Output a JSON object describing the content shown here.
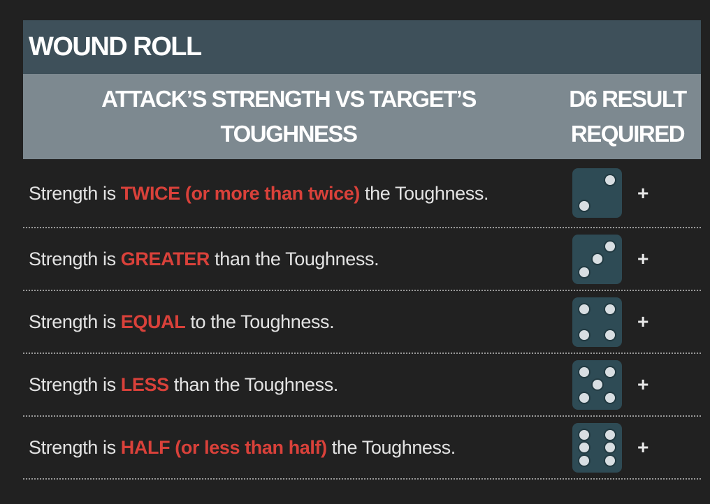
{
  "title": "WOUND ROLL",
  "headers": {
    "col1": "ATTACK’S STRENGTH VS TARGET’S TOUGHNESS",
    "col2": "D6 RESULT REQUIRED"
  },
  "rows": [
    {
      "pre": "Strength is ",
      "hl": "TWICE (or more than twice)",
      "post": " the Toughness.",
      "die": 2,
      "suffix": "+"
    },
    {
      "pre": "Strength is ",
      "hl": "GREATER",
      "post": " than the Toughness.",
      "die": 3,
      "suffix": "+"
    },
    {
      "pre": "Strength is ",
      "hl": "EQUAL",
      "post": " to the Toughness.",
      "die": 4,
      "suffix": "+"
    },
    {
      "pre": "Strength is ",
      "hl": "LESS",
      "post": " than the Toughness.",
      "die": 5,
      "suffix": "+"
    },
    {
      "pre": "Strength is ",
      "hl": "HALF (or less than half)",
      "post": " the Toughness.",
      "die": 6,
      "suffix": "+"
    }
  ],
  "colors": {
    "title_bg": "#3e505a",
    "header_bg": "#7d8990",
    "highlight": "#d9413a",
    "die": "#2e4b55"
  }
}
